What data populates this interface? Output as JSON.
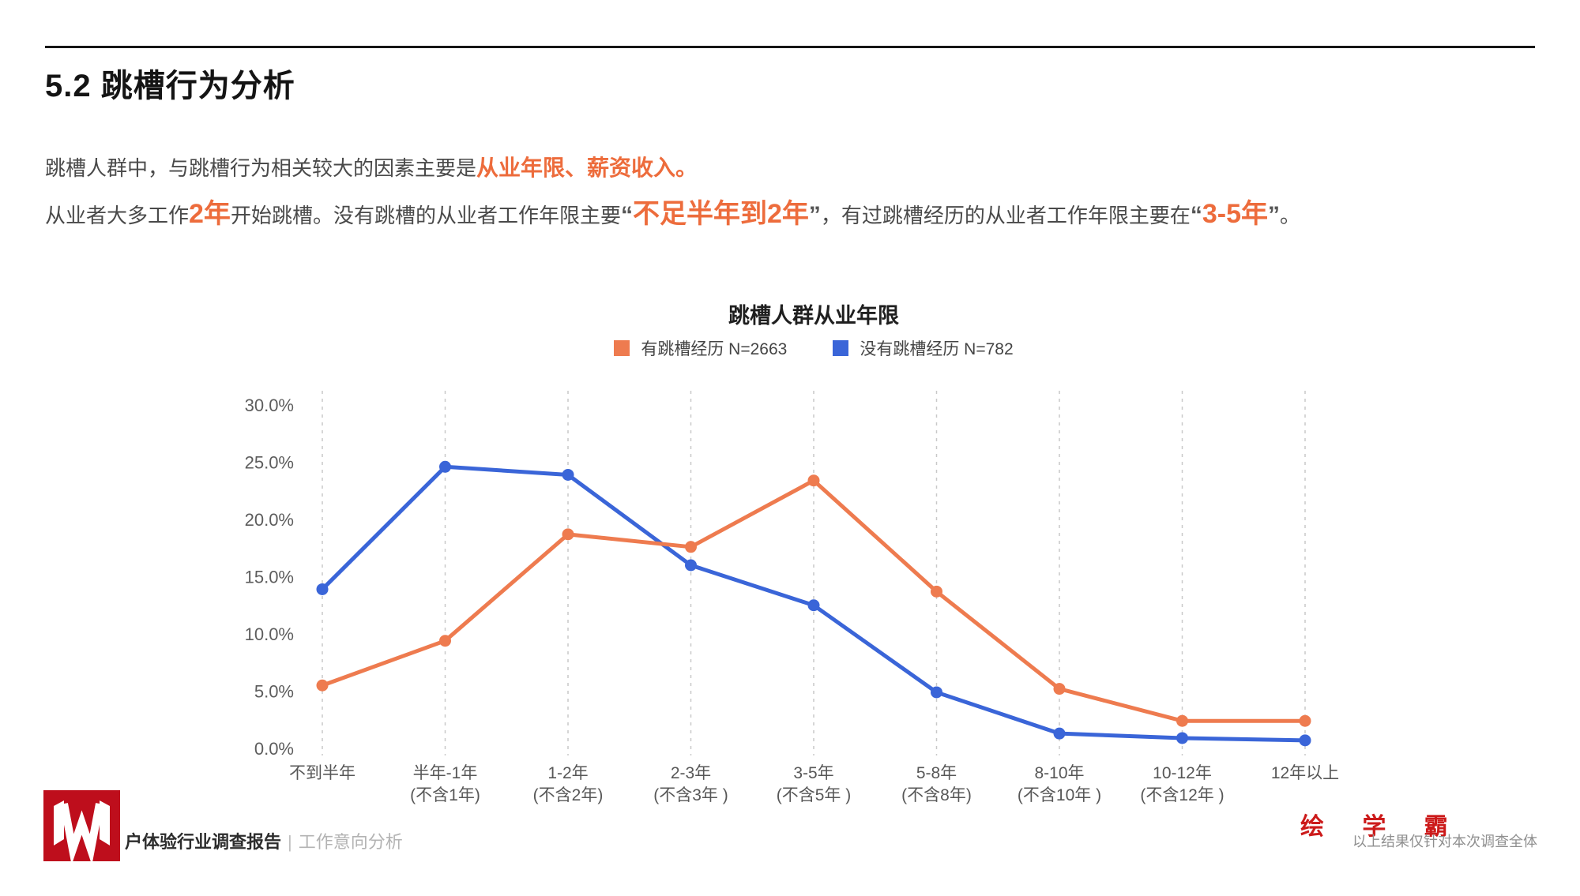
{
  "header": {
    "section_title": "5.2 跳槽行为分析"
  },
  "intro": {
    "line1": [
      {
        "text": "跳槽人群中，与跳槽行为相关较大的因素主要是",
        "style": "normal"
      },
      {
        "text": "从业年限、薪资收入。",
        "style": "highlight"
      }
    ],
    "line2": [
      {
        "text": "从业者大多工作",
        "style": "normal"
      },
      {
        "text": "2年",
        "style": "highlight-big"
      },
      {
        "text": "开始跳槽。没有跳槽的从业者工作年限主要",
        "style": "normal"
      },
      {
        "text": "“",
        "style": "quote"
      },
      {
        "text": "不足半年到2年",
        "style": "highlight-big"
      },
      {
        "text": "”",
        "style": "quote"
      },
      {
        "text": "，有过跳槽经历的从业者工作年限主要在",
        "style": "normal"
      },
      {
        "text": "“",
        "style": "quote"
      },
      {
        "text": "3-5年",
        "style": "highlight-big"
      },
      {
        "text": "”",
        "style": "quote"
      },
      {
        "text": "。",
        "style": "normal"
      }
    ]
  },
  "chart_data": {
    "type": "line",
    "title": "跳槽人群从业年限",
    "legend_position": "top",
    "grid": "vertical-dashed",
    "ylim": [
      0,
      30
    ],
    "ytick_labels": [
      "30.0%",
      "25.0%",
      "20.0%",
      "15.0%",
      "10.0%",
      "5.0%",
      "0.0%"
    ],
    "categories": [
      {
        "label": "不到半年",
        "sublabel": ""
      },
      {
        "label": "半年-1年",
        "sublabel": "(不含1年)"
      },
      {
        "label": "1-2年",
        "sublabel": "(不含2年)"
      },
      {
        "label": "2-3年",
        "sublabel": "(不含3年 )"
      },
      {
        "label": "3-5年",
        "sublabel": "(不含5年 )"
      },
      {
        "label": "5-8年",
        "sublabel": "(不含8年)"
      },
      {
        "label": "8-10年",
        "sublabel": "(不含10年 )"
      },
      {
        "label": "10-12年",
        "sublabel": "(不含12年 )"
      },
      {
        "label": "12年以上",
        "sublabel": ""
      }
    ],
    "series": [
      {
        "name": "有跳槽经历  N=2663",
        "color": "#EE7B4F",
        "values": [
          5.5,
          9.4,
          18.7,
          17.6,
          23.4,
          13.7,
          5.2,
          2.4,
          2.4
        ]
      },
      {
        "name": "没有跳槽经历  N=782",
        "color": "#3A65D8",
        "values": [
          13.9,
          24.6,
          23.9,
          16.0,
          12.5,
          4.9,
          1.3,
          0.9,
          0.7
        ]
      }
    ]
  },
  "footer": {
    "report_title": "户体验行业调查报告",
    "separator": "|",
    "section_label": "工作意向分析",
    "brand": "绘 学 霸",
    "note": "以上结果仅针对本次调查全体",
    "logo_color": "#BE0E1C"
  }
}
